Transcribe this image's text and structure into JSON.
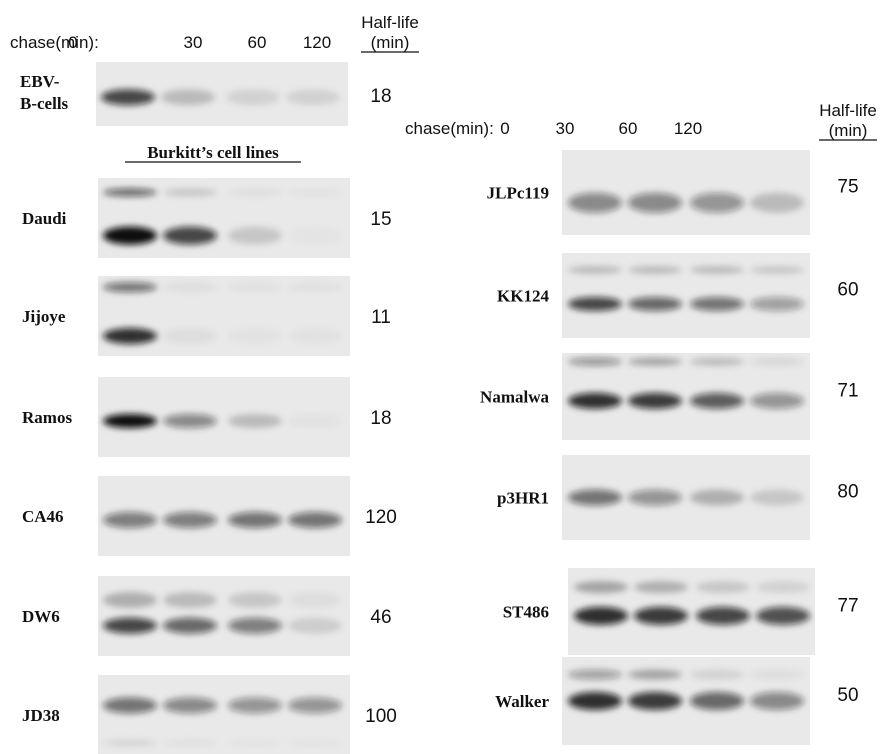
{
  "left": {
    "header": {
      "chase_label": "chase(min):",
      "lanes": [
        "0",
        "30",
        "60",
        "120"
      ],
      "half_life": "Half-life",
      "unit": "(min)"
    },
    "control": {
      "label_lines": [
        "EBV-",
        "B-cells"
      ],
      "half_life": 18
    },
    "section_title": "Burkitt’s cell lines",
    "rows": [
      {
        "label": "Daudi",
        "half_life": 15
      },
      {
        "label": "Jijoye",
        "half_life": 11
      },
      {
        "label": "Ramos",
        "half_life": 18
      },
      {
        "label": "CA46",
        "half_life": 120
      },
      {
        "label": "DW6",
        "half_life": 46
      },
      {
        "label": "JD38",
        "half_life": 100
      }
    ]
  },
  "right": {
    "header": {
      "chase_label": "chase(min):",
      "lanes": [
        "0",
        "30",
        "60",
        "120"
      ],
      "half_life": "Half-life",
      "unit": "(min)"
    },
    "rows": [
      {
        "label": "JLPc119",
        "half_life": 75
      },
      {
        "label": "KK124",
        "half_life": 60
      },
      {
        "label": "Namalwa",
        "half_life": 71
      },
      {
        "label": "p3HR1",
        "half_life": 80
      },
      {
        "label": "ST486",
        "half_life": 77
      },
      {
        "label": "Walker",
        "half_life": 50
      }
    ]
  }
}
